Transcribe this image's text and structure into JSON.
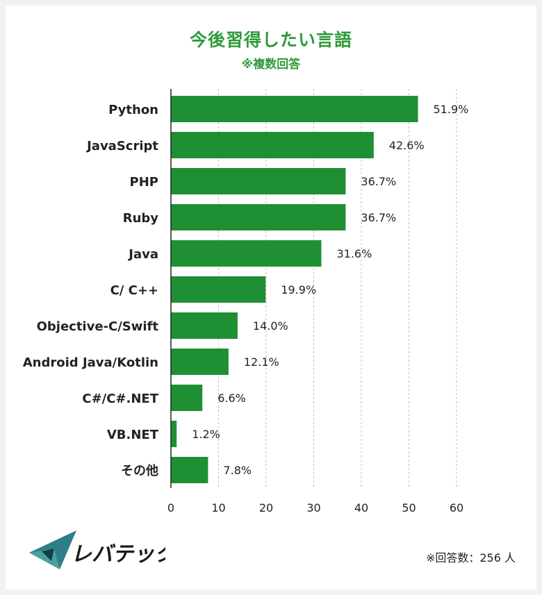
{
  "chart_data": {
    "type": "bar",
    "orientation": "horizontal",
    "title": "今後習得したい言語",
    "subtitle": "※複数回答",
    "categories": [
      "Python",
      "JavaScript",
      "PHP",
      "Ruby",
      "Java",
      "C/ C++",
      "Objective-C/Swift",
      "Android Java/Kotlin",
      "C#/C#.NET",
      "VB.NET",
      "その他"
    ],
    "values": [
      51.9,
      42.6,
      36.7,
      36.7,
      31.6,
      19.9,
      14.0,
      12.1,
      6.6,
      1.2,
      7.8
    ],
    "value_labels": [
      "51.9%",
      "42.6%",
      "36.7%",
      "36.7%",
      "31.6%",
      "19.9%",
      "14.0%",
      "12.1%",
      "6.6%",
      "1.2%",
      "7.8%"
    ],
    "xlim": [
      0,
      60
    ],
    "xticks": [
      0,
      10,
      20,
      30,
      40,
      50,
      60
    ],
    "grid": true,
    "bar_color": "#1f8f33"
  },
  "logo": {
    "text": "レバテック",
    "icon": "levtech-logo-icon"
  },
  "footnote": "※回答数：256 人"
}
